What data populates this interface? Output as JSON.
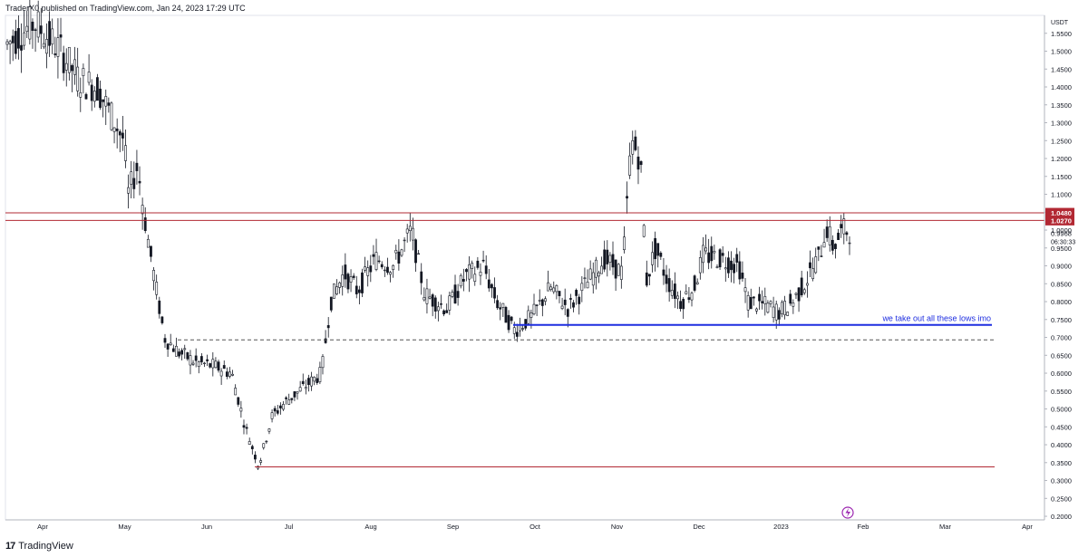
{
  "header": {
    "published_text": "TraderX0 published on TradingView.com, Jan 24, 2023 17:29 UTC"
  },
  "footer": {
    "logo_text": "17",
    "brand_text": "TradingView"
  },
  "chart_data": {
    "type": "candlestick",
    "currency": "USDT",
    "ylim": [
      0.19,
      1.6
    ],
    "y_ticks": [
      "1.5500",
      "1.5000",
      "1.4500",
      "1.4000",
      "1.3500",
      "1.3000",
      "1.2500",
      "1.2000",
      "1.1500",
      "1.1000",
      "1.0500",
      "1.0000",
      "0.9500",
      "0.9000",
      "0.8500",
      "0.8000",
      "0.7500",
      "0.7000",
      "0.6500",
      "0.6000",
      "0.5500",
      "0.5000",
      "0.4500",
      "0.4000",
      "0.3500",
      "0.3000",
      "0.2500",
      "0.2000"
    ],
    "x_ticks": [
      "Apr",
      "May",
      "Jun",
      "Jul",
      "Aug",
      "Sep",
      "Oct",
      "Nov",
      "Dec",
      "2023",
      "Feb",
      "Mar",
      "Apr"
    ],
    "price_labels": [
      {
        "value": 1.048,
        "text": "1.0480",
        "color": "#b22833"
      },
      {
        "value": 1.027,
        "text": "1.0270",
        "color": "#b22833"
      }
    ],
    "current_price": {
      "value": 0.9968,
      "text": "0.9968",
      "countdown": "06:30:33"
    },
    "horizontal_lines": [
      {
        "name": "resistance-top",
        "y": 1.048,
        "x_from": "Mar",
        "x_to": "Mar 2023",
        "color": "#b22833",
        "style": "solid"
      },
      {
        "name": "resistance-bottom",
        "y": 1.027,
        "x_from": "Mar",
        "x_to": "Mar 2023",
        "color": "#b22833",
        "style": "solid"
      },
      {
        "name": "lows-line",
        "y": 0.735,
        "x_from": "Sep",
        "x_to": "Mar 2023",
        "color": "#1e2ee0",
        "style": "solid"
      },
      {
        "name": "dashed-level",
        "y": 0.693,
        "x_from": "Jun",
        "x_to": "Mar 2023",
        "color": "#555555",
        "style": "dashed"
      },
      {
        "name": "support-bottom",
        "y": 0.338,
        "x_from": "Jun",
        "x_to": "Mar 2023",
        "color": "#b22833",
        "style": "solid"
      }
    ],
    "annotation": {
      "text": "we take out all these lows imo",
      "color": "#1e2ee0",
      "y": 0.735
    },
    "series": [
      {
        "t": 0.0,
        "v": 1.52
      },
      {
        "t": 0.03,
        "v": 1.58
      },
      {
        "t": 0.06,
        "v": 1.5
      },
      {
        "t": 0.08,
        "v": 1.42
      },
      {
        "t": 0.1,
        "v": 1.4
      },
      {
        "t": 0.12,
        "v": 1.3
      },
      {
        "t": 0.13,
        "v": 1.25
      },
      {
        "t": 0.135,
        "v": 1.1
      },
      {
        "t": 0.145,
        "v": 1.18
      },
      {
        "t": 0.155,
        "v": 1.0
      },
      {
        "t": 0.165,
        "v": 0.85
      },
      {
        "t": 0.175,
        "v": 0.7
      },
      {
        "t": 0.19,
        "v": 0.66
      },
      {
        "t": 0.21,
        "v": 0.63
      },
      {
        "t": 0.23,
        "v": 0.62
      },
      {
        "t": 0.25,
        "v": 0.6
      },
      {
        "t": 0.265,
        "v": 0.45
      },
      {
        "t": 0.28,
        "v": 0.34
      },
      {
        "t": 0.295,
        "v": 0.48
      },
      {
        "t": 0.31,
        "v": 0.52
      },
      {
        "t": 0.33,
        "v": 0.56
      },
      {
        "t": 0.35,
        "v": 0.6
      },
      {
        "t": 0.36,
        "v": 0.8
      },
      {
        "t": 0.375,
        "v": 0.88
      },
      {
        "t": 0.39,
        "v": 0.83
      },
      {
        "t": 0.41,
        "v": 0.92
      },
      {
        "t": 0.43,
        "v": 0.9
      },
      {
        "t": 0.45,
        "v": 1.0
      },
      {
        "t": 0.465,
        "v": 0.82
      },
      {
        "t": 0.49,
        "v": 0.78
      },
      {
        "t": 0.51,
        "v": 0.87
      },
      {
        "t": 0.53,
        "v": 0.9
      },
      {
        "t": 0.545,
        "v": 0.8
      },
      {
        "t": 0.565,
        "v": 0.72
      },
      {
        "t": 0.585,
        "v": 0.76
      },
      {
        "t": 0.605,
        "v": 0.84
      },
      {
        "t": 0.625,
        "v": 0.78
      },
      {
        "t": 0.645,
        "v": 0.85
      },
      {
        "t": 0.665,
        "v": 0.92
      },
      {
        "t": 0.685,
        "v": 0.88
      },
      {
        "t": 0.695,
        "v": 1.25
      },
      {
        "t": 0.705,
        "v": 1.2
      },
      {
        "t": 0.712,
        "v": 0.86
      },
      {
        "t": 0.722,
        "v": 0.95
      },
      {
        "t": 0.735,
        "v": 0.86
      },
      {
        "t": 0.75,
        "v": 0.8
      },
      {
        "t": 0.765,
        "v": 0.84
      },
      {
        "t": 0.775,
        "v": 0.93
      },
      {
        "t": 0.795,
        "v": 0.92
      },
      {
        "t": 0.815,
        "v": 0.9
      },
      {
        "t": 0.825,
        "v": 0.8
      },
      {
        "t": 0.845,
        "v": 0.79
      },
      {
        "t": 0.86,
        "v": 0.77
      },
      {
        "t": 0.875,
        "v": 0.8
      },
      {
        "t": 0.89,
        "v": 0.86
      },
      {
        "t": 0.905,
        "v": 0.93
      },
      {
        "t": 0.912,
        "v": 1.01
      },
      {
        "t": 0.92,
        "v": 0.95
      },
      {
        "t": 0.93,
        "v": 1.0
      },
      {
        "t": 0.938,
        "v": 0.997
      }
    ]
  }
}
